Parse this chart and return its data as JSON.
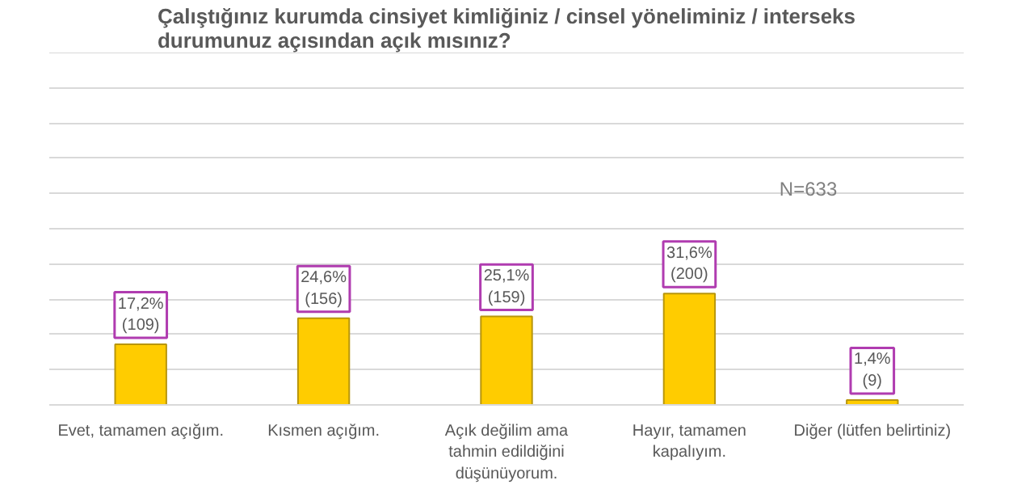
{
  "chart_data": {
    "type": "bar",
    "title": "Çalıştığınız kurumda cinsiyet kimliğiniz / cinsel yöneliminiz / interseks\ndurumunuz açısından açık mısınız?",
    "categories": [
      "Evet, tamamen açığım.",
      "Kısmen açığım.",
      "Açık değilim ama\ntahmin edildiğini\ndüşünüyorum.",
      "Hayır, tamamen\nkapalıyım.",
      "Diğer (lütfen belirtiniz)"
    ],
    "values": [
      17.2,
      24.6,
      25.1,
      31.6,
      1.4
    ],
    "value_labels": [
      "17,2%\n(109)",
      "24,6%\n(156)",
      "25,1%\n(159)",
      "31,6%\n(200)",
      "1,4%\n(9)"
    ],
    "color": "#ffcc00",
    "ylim": [
      0,
      100
    ],
    "tick_labels": "x",
    "grid": "y",
    "annotations": [
      "N=633"
    ]
  }
}
